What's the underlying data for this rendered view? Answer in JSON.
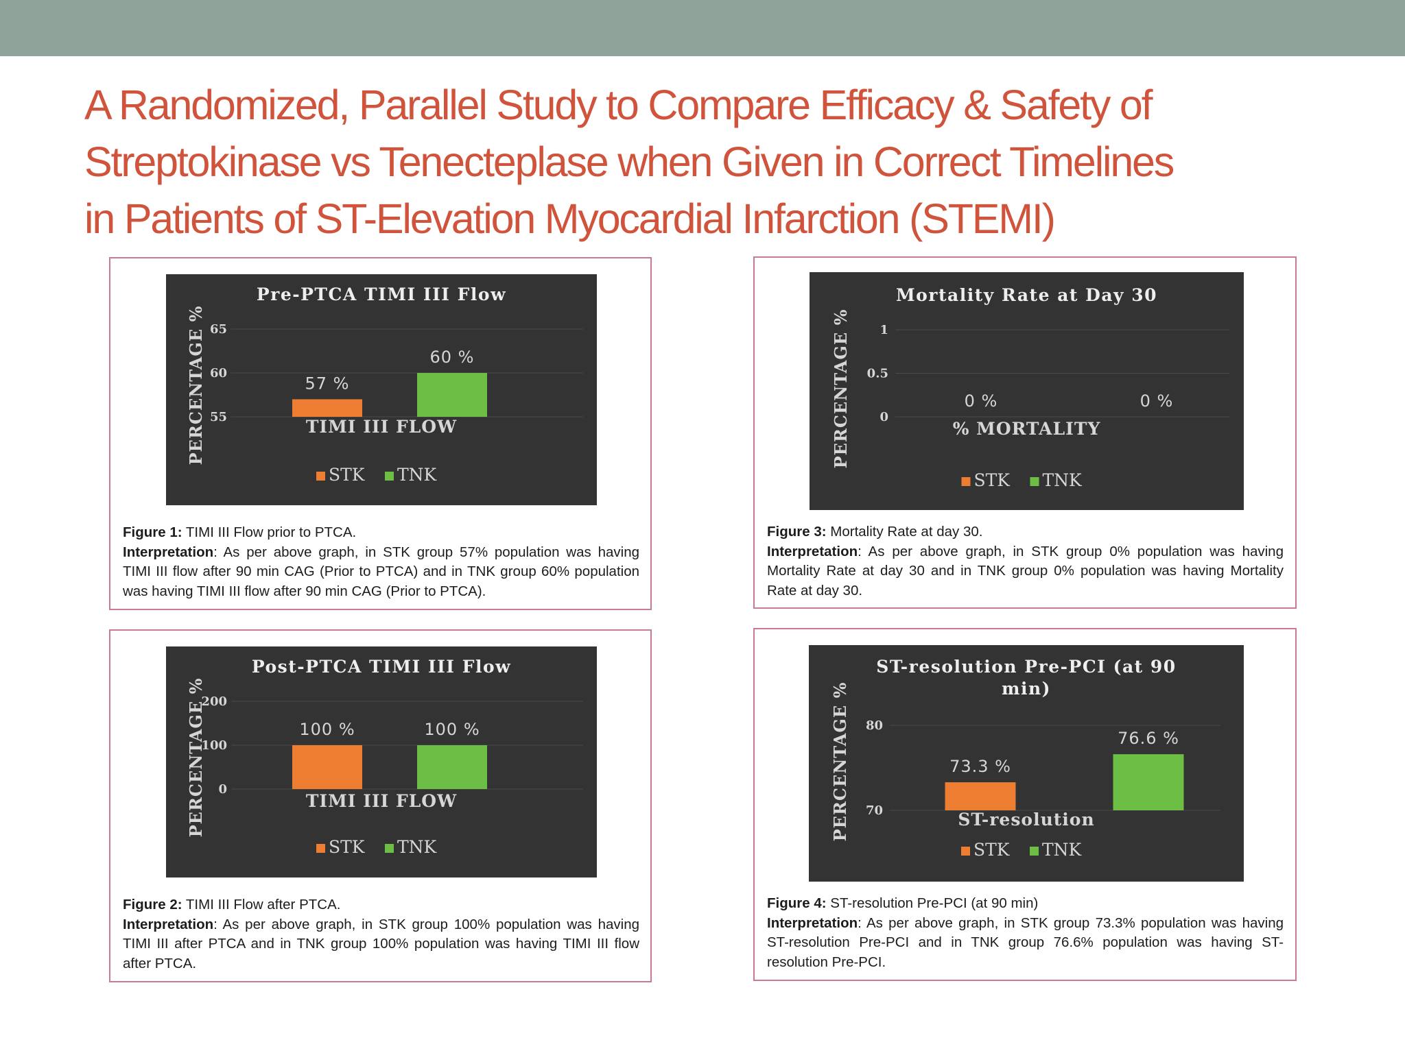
{
  "slide": {
    "title_lines": [
      "A Randomized, Parallel Study to Compare Efficacy & Safety of",
      "Streptokinase vs Tenecteplase when Given in Correct Timelines",
      "in Patients of ST-Elevation Myocardial Infarction (STEMI)"
    ]
  },
  "colors": {
    "header_bar": "#8fa39a",
    "title": "#d0533b",
    "panel_border": "#c97b96",
    "chart_bg": "#333333",
    "stk": "#ed7d31",
    "tnk": "#6dbe45"
  },
  "figures": [
    {
      "caption_label": "Figure 1:",
      "caption_text": " TIMI III Flow prior to PTCA.",
      "interp_label": "Interpretation",
      "interp_text": ": As per above graph, in STK group 57% population was having TIMI III flow after 90 min CAG (Prior to PTCA) and in TNK group 60% population was having TIMI III flow after 90 min CAG (Prior to PTCA)."
    },
    {
      "caption_label": "Figure 2:",
      "caption_text": " TIMI III Flow after PTCA.",
      "interp_label": "Interpretation",
      "interp_text": ": As per above graph, in STK group 100% population was having TIMI III after PTCA and in TNK group 100% population was having TIMI III flow after PTCA."
    },
    {
      "caption_label": "Figure 3:",
      "caption_text": " Mortality Rate at day 30.",
      "interp_label": "Interpretation",
      "interp_text": ": As per above graph, in STK group 0% population was having Mortality Rate at day 30 and in TNK group 0% population was having Mortality Rate at day 30."
    },
    {
      "caption_label": "Figure 4:",
      "caption_text": " ST-resolution Pre-PCI (at 90 min)",
      "interp_label": "Interpretation",
      "interp_text": ": As per above graph, in STK group 73.3% population was having ST-resolution Pre-PCI and in TNK group 76.6% population was having ST-resolution Pre-PCI."
    }
  ],
  "chart_data": [
    {
      "type": "bar",
      "title": [
        "Pre-PTCA TIMI III Flow"
      ],
      "categories": [
        "TIMI III FLOW"
      ],
      "xlabel": "TIMI III FLOW",
      "ylabel": "PERCENTAGE %",
      "yticks": [
        "55",
        "60",
        "65"
      ],
      "ylim": [
        55,
        65
      ],
      "grid": true,
      "legend": "bottom",
      "series": [
        {
          "name": "STK",
          "values": [
            57
          ],
          "label": "57 %",
          "color": "#ed7d31"
        },
        {
          "name": "TNK",
          "values": [
            60
          ],
          "label": "60 %",
          "color": "#6dbe45"
        }
      ]
    },
    {
      "type": "bar",
      "title": [
        "Post-PTCA TIMI III Flow"
      ],
      "categories": [
        "TIMI III FLOW"
      ],
      "xlabel": "TIMI III FLOW",
      "ylabel": "PERCENTAGE %",
      "yticks": [
        "0",
        "100",
        "200"
      ],
      "ylim": [
        0,
        200
      ],
      "grid": true,
      "legend": "bottom",
      "series": [
        {
          "name": "STK",
          "values": [
            100
          ],
          "label": "100 %",
          "color": "#ed7d31"
        },
        {
          "name": "TNK",
          "values": [
            100
          ],
          "label": "100 %",
          "color": "#6dbe45"
        }
      ]
    },
    {
      "type": "bar",
      "title": [
        "Mortality Rate at Day 30"
      ],
      "categories": [
        "% MORTALITY"
      ],
      "xlabel": "% MORTALITY",
      "ylabel": "PERCENTAGE %",
      "yticks": [
        "0",
        "0.5",
        "1"
      ],
      "ylim": [
        0,
        1
      ],
      "grid": true,
      "legend": "bottom",
      "series": [
        {
          "name": "STK",
          "values": [
            0
          ],
          "label": "0 %",
          "color": "#ed7d31"
        },
        {
          "name": "TNK",
          "values": [
            0
          ],
          "label": "0 %",
          "color": "#6dbe45"
        }
      ]
    },
    {
      "type": "bar",
      "title": [
        "ST-resolution Pre-PCI (at 90",
        "min)"
      ],
      "categories": [
        "ST-resolution"
      ],
      "xlabel": "ST-resolution",
      "ylabel": "PERCENTAGE %",
      "yticks": [
        "70",
        "80"
      ],
      "ylim": [
        70,
        80
      ],
      "grid": true,
      "legend": "bottom",
      "series": [
        {
          "name": "STK",
          "values": [
            73.3
          ],
          "label": "73.3 %",
          "color": "#ed7d31"
        },
        {
          "name": "TNK",
          "values": [
            76.6
          ],
          "label": "76.6 %",
          "color": "#6dbe45"
        }
      ]
    }
  ]
}
